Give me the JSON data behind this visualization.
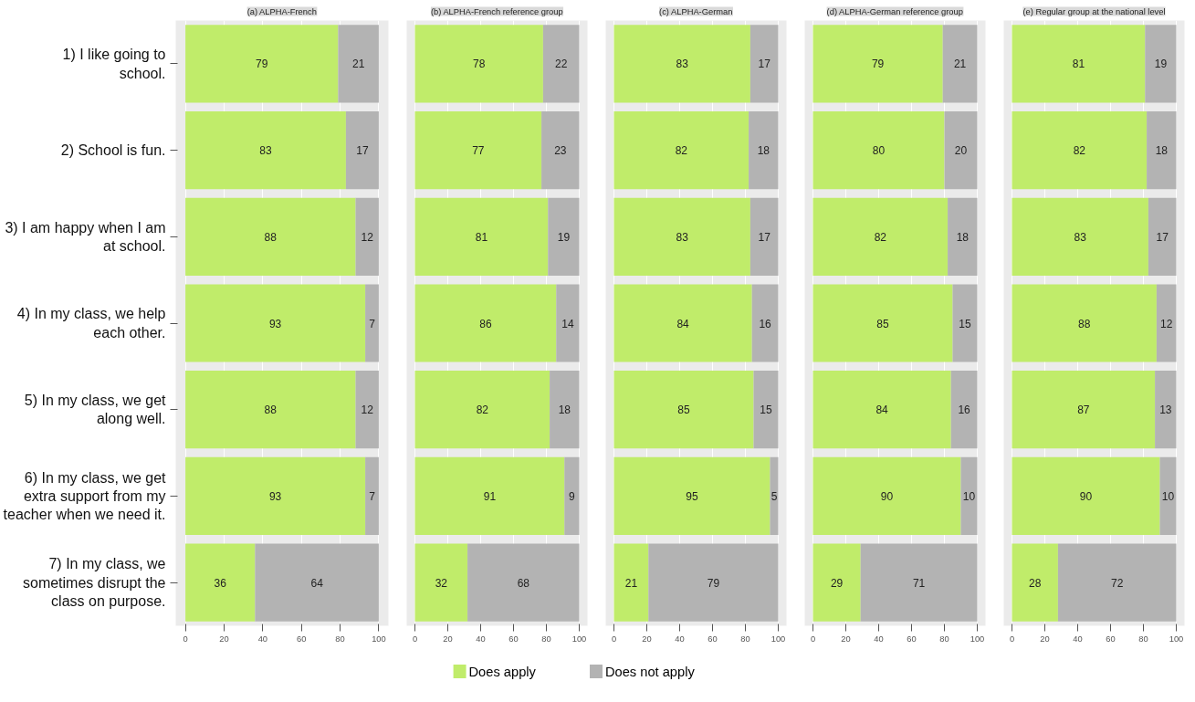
{
  "chart_data": [
    {
      "type": "bar",
      "orientation": "horizontal",
      "stacked": true,
      "title": "(a) ALPHA-French",
      "categories": [
        "1) I like going to school.",
        "2) School is fun.",
        "3) I am happy when I am at school.",
        "4) In my class, we help each other.",
        "5) In my class, we get along well.",
        "6) In my class, we get extra support from my teacher when we need it.",
        "7) In my class, we sometimes disrupt the class on purpose."
      ],
      "series": [
        {
          "name": "Does apply",
          "color": "#c0ec6a",
          "values": [
            79,
            83,
            88,
            93,
            88,
            93,
            36
          ]
        },
        {
          "name": "Does not apply",
          "color": "#b3b3b3",
          "values": [
            21,
            17,
            12,
            7,
            12,
            7,
            64
          ]
        }
      ],
      "xlim": [
        -5,
        105
      ],
      "xticks": [
        0,
        20,
        40,
        60,
        80,
        100
      ],
      "grid": "x",
      "data_labels": true,
      "legend": "bottom"
    },
    {
      "type": "bar",
      "orientation": "horizontal",
      "stacked": true,
      "title": "(b) ALPHA-French reference group",
      "categories": [
        "1) I like going to school.",
        "2) School is fun.",
        "3) I am happy when I am at school.",
        "4) In my class, we help each other.",
        "5) In my class, we get along well.",
        "6) In my class, we get extra support from my teacher when we need it.",
        "7) In my class, we sometimes disrupt the class on purpose."
      ],
      "series": [
        {
          "color": "#c0ec6a",
          "values": [
            78,
            77,
            81,
            86,
            82,
            91,
            32
          ]
        },
        {
          "color": "#b3b3b3",
          "values": [
            22,
            23,
            19,
            14,
            18,
            9,
            68
          ]
        }
      ],
      "xlim": [
        -5,
        105
      ],
      "xticks": [
        0,
        20,
        40,
        60,
        80,
        100
      ],
      "grid": "x",
      "data_labels": true,
      "tick_labels": "x"
    },
    {
      "type": "bar",
      "orientation": "horizontal",
      "stacked": true,
      "title": "(c) ALPHA-German",
      "categories": [
        "1) I like going to school.",
        "2) School is fun.",
        "3) I am happy when I am at school.",
        "4) In my class, we help each other.",
        "5) In my class, we get along well.",
        "6) In my class, we get extra support from my teacher when we need it.",
        "7) In my class, we sometimes disrupt the class on purpose."
      ],
      "series": [
        {
          "color": "#c0ec6a",
          "values": [
            83,
            82,
            83,
            84,
            85,
            95,
            21
          ]
        },
        {
          "color": "#b3b3b3",
          "values": [
            17,
            18,
            17,
            16,
            15,
            5,
            79
          ]
        }
      ],
      "xlim": [
        -5,
        105
      ],
      "xticks": [
        0,
        20,
        40,
        60,
        80,
        100
      ],
      "grid": "x",
      "data_labels": true,
      "tick_labels": "x"
    },
    {
      "type": "bar",
      "orientation": "horizontal",
      "stacked": true,
      "title": "(d) ALPHA-German reference group",
      "categories": [
        "1) I like going to school.",
        "2) School is fun.",
        "3) I am happy when I am at school.",
        "4) In my class, we help each other.",
        "5) In my class, we get along well.",
        "6) In my class, we get extra support from my teacher when we need it.",
        "7) In my class, we sometimes disrupt the class on purpose."
      ],
      "series": [
        {
          "color": "#c0ec6a",
          "values": [
            79,
            80,
            82,
            85,
            84,
            90,
            29
          ]
        },
        {
          "color": "#b3b3b3",
          "values": [
            21,
            20,
            18,
            15,
            16,
            10,
            71
          ]
        }
      ],
      "xlim": [
        -5,
        105
      ],
      "xticks": [
        0,
        20,
        40,
        60,
        80,
        100
      ],
      "grid": "x",
      "data_labels": true,
      "tick_labels": "x"
    },
    {
      "type": "bar",
      "orientation": "horizontal",
      "stacked": true,
      "title": "(e) Regular group at the national level",
      "categories": [
        "1) I like going to school.",
        "2) School is fun.",
        "3) I am happy when I am at school.",
        "4) In my class, we help each other.",
        "5) In my class, we get along well.",
        "6) In my class, we get extra support from my teacher when we need it.",
        "7) In my class, we sometimes disrupt the class on purpose."
      ],
      "series": [
        {
          "color": "#c0ec6a",
          "values": [
            81,
            82,
            83,
            88,
            87,
            90,
            28
          ]
        },
        {
          "color": "#b3b3b3",
          "values": [
            19,
            18,
            17,
            12,
            13,
            10,
            72
          ]
        }
      ],
      "xlim": [
        -5,
        105
      ],
      "xticks": [
        0,
        20,
        40,
        60,
        80,
        100
      ],
      "grid": "x",
      "data_labels": true,
      "tick_labels": "x"
    }
  ]
}
